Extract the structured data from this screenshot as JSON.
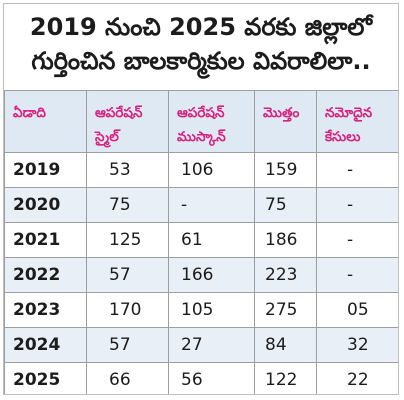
{
  "title": {
    "line1": "2019 నుంచి 2025 వరకు జిల్లాలో",
    "line2": "గుర్తించిన బాలకార్మికుల వివరాలిలా.."
  },
  "table": {
    "headers": [
      "ఏడాది",
      "ఆపరేషన్ స్మైల్",
      "ఆపరేషన్ ముస్కాన్",
      "మొత్తం",
      "నమోదైన కేసులు"
    ],
    "rows": [
      [
        "2019",
        "53",
        "106",
        "159",
        "-"
      ],
      [
        "2020",
        "75",
        "-",
        "75",
        "-"
      ],
      [
        "2021",
        "125",
        "61",
        "186",
        "-"
      ],
      [
        "2022",
        "57",
        "166",
        "223",
        "-"
      ],
      [
        "2023",
        "170",
        "105",
        "275",
        "05"
      ],
      [
        "2024",
        "57",
        "27",
        "84",
        "32"
      ],
      [
        "2025",
        "66",
        "56",
        "122",
        "22"
      ]
    ]
  },
  "colors": {
    "header_text": "#d6237f",
    "header_bg": "#dfe9f4",
    "row_shade": "#e9eff7",
    "border": "#9e9e9e"
  }
}
